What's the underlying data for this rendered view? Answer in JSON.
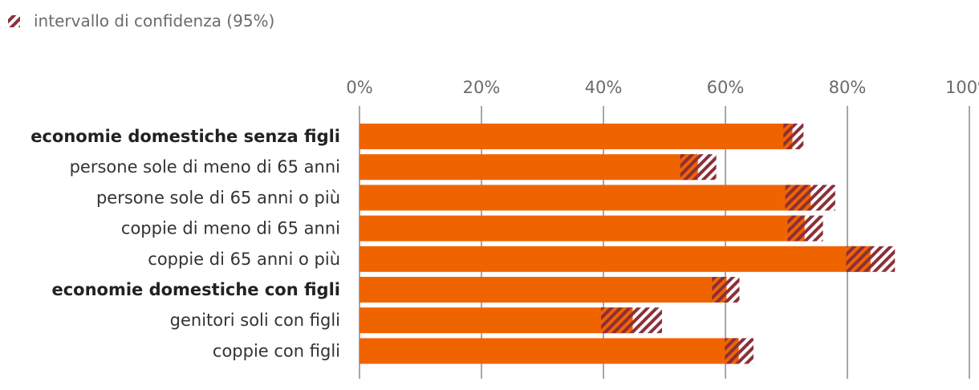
{
  "legend": {
    "ci_label": "intervallo di confidenza (95%)"
  },
  "colors": {
    "bar": "#f06400",
    "ci": "#8c2f39",
    "grid": "#8a8a8a",
    "axis_text": "#6b6b6b",
    "label_text": "#333333"
  },
  "chart_data": {
    "type": "bar",
    "orientation": "horizontal",
    "title": "",
    "xlabel": "",
    "ylabel": "",
    "xlim": [
      0,
      100
    ],
    "ticks": [
      "0%",
      "20%",
      "40%",
      "60%",
      "80%",
      "100%"
    ],
    "tick_values": [
      0,
      20,
      40,
      60,
      80,
      100
    ],
    "grid": true,
    "legend_position": "top-left",
    "categories": [
      "economie domestiche senza figli",
      "persone sole di meno di 65 anni",
      "persone sole di 65 anni o più",
      "coppie di meno di 65 anni",
      "coppie di 65 anni o più",
      "economie domestiche con figli",
      "genitori soli con figli",
      "coppie con figli"
    ],
    "bold_categories": [
      true,
      false,
      false,
      false,
      false,
      true,
      false,
      false
    ],
    "values": [
      71.0,
      55.5,
      74.0,
      73.0,
      83.8,
      60.2,
      44.8,
      62.2
    ],
    "ci_lower": [
      69.5,
      52.6,
      69.8,
      70.2,
      79.8,
      57.8,
      39.6,
      59.9
    ],
    "ci_upper": [
      72.8,
      58.5,
      78.0,
      76.0,
      87.8,
      62.3,
      49.6,
      64.6
    ]
  }
}
